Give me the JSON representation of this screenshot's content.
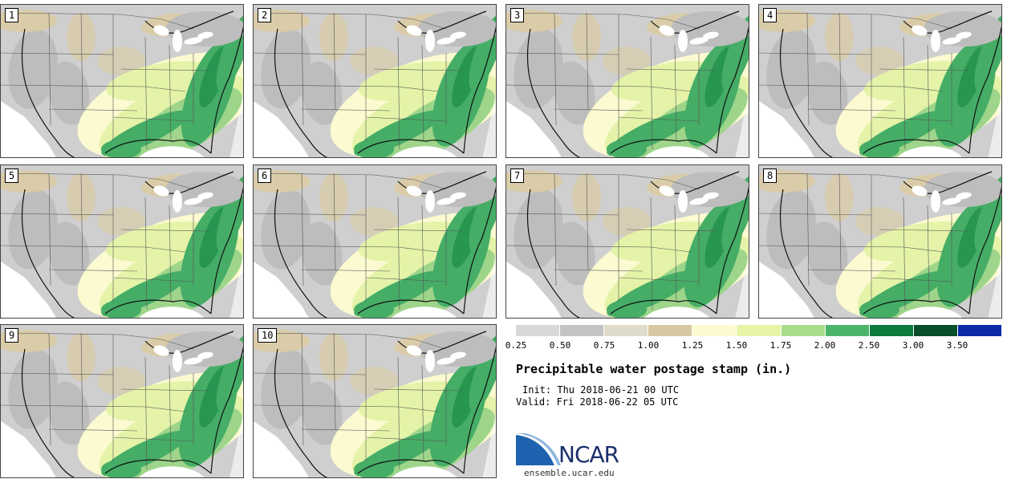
{
  "panels": [
    {
      "label": "1"
    },
    {
      "label": "2"
    },
    {
      "label": "3"
    },
    {
      "label": "4"
    },
    {
      "label": "5"
    },
    {
      "label": "6"
    },
    {
      "label": "7"
    },
    {
      "label": "8"
    },
    {
      "label": "9"
    },
    {
      "label": "10"
    }
  ],
  "legend": {
    "ticks": [
      "0.25",
      "0.50",
      "0.75",
      "1.00",
      "1.25",
      "1.50",
      "1.75",
      "2.00",
      "2.50",
      "3.00",
      "3.50"
    ],
    "colors": [
      "#d8d8d8",
      "#c4c4c4",
      "#e0dccc",
      "#d9c9a3",
      "#fbfad0",
      "#e7f5a6",
      "#a9dc8c",
      "#4cb36a",
      "#0b7a3a",
      "#0a4d2a",
      "#0a2aa8"
    ]
  },
  "title": "Precipitable water postage stamp (in.)",
  "init": "Init: Thu 2018-06-21 00 UTC",
  "valid": "Valid: Fri 2018-06-22 05 UTC",
  "logo": {
    "text": "NCAR",
    "site": "ensemble.ucar.edu"
  },
  "map_colors": {
    "ocean": "#ffffff",
    "dry": "#cfcfcf",
    "very_dry": "#bdbdbd",
    "tan": "#dacba3",
    "pale": "#fbfad0",
    "light_green": "#e4f3a8",
    "mid_green": "#9ed58a",
    "green": "#45ad66",
    "dark_green": "#1d8a48"
  }
}
